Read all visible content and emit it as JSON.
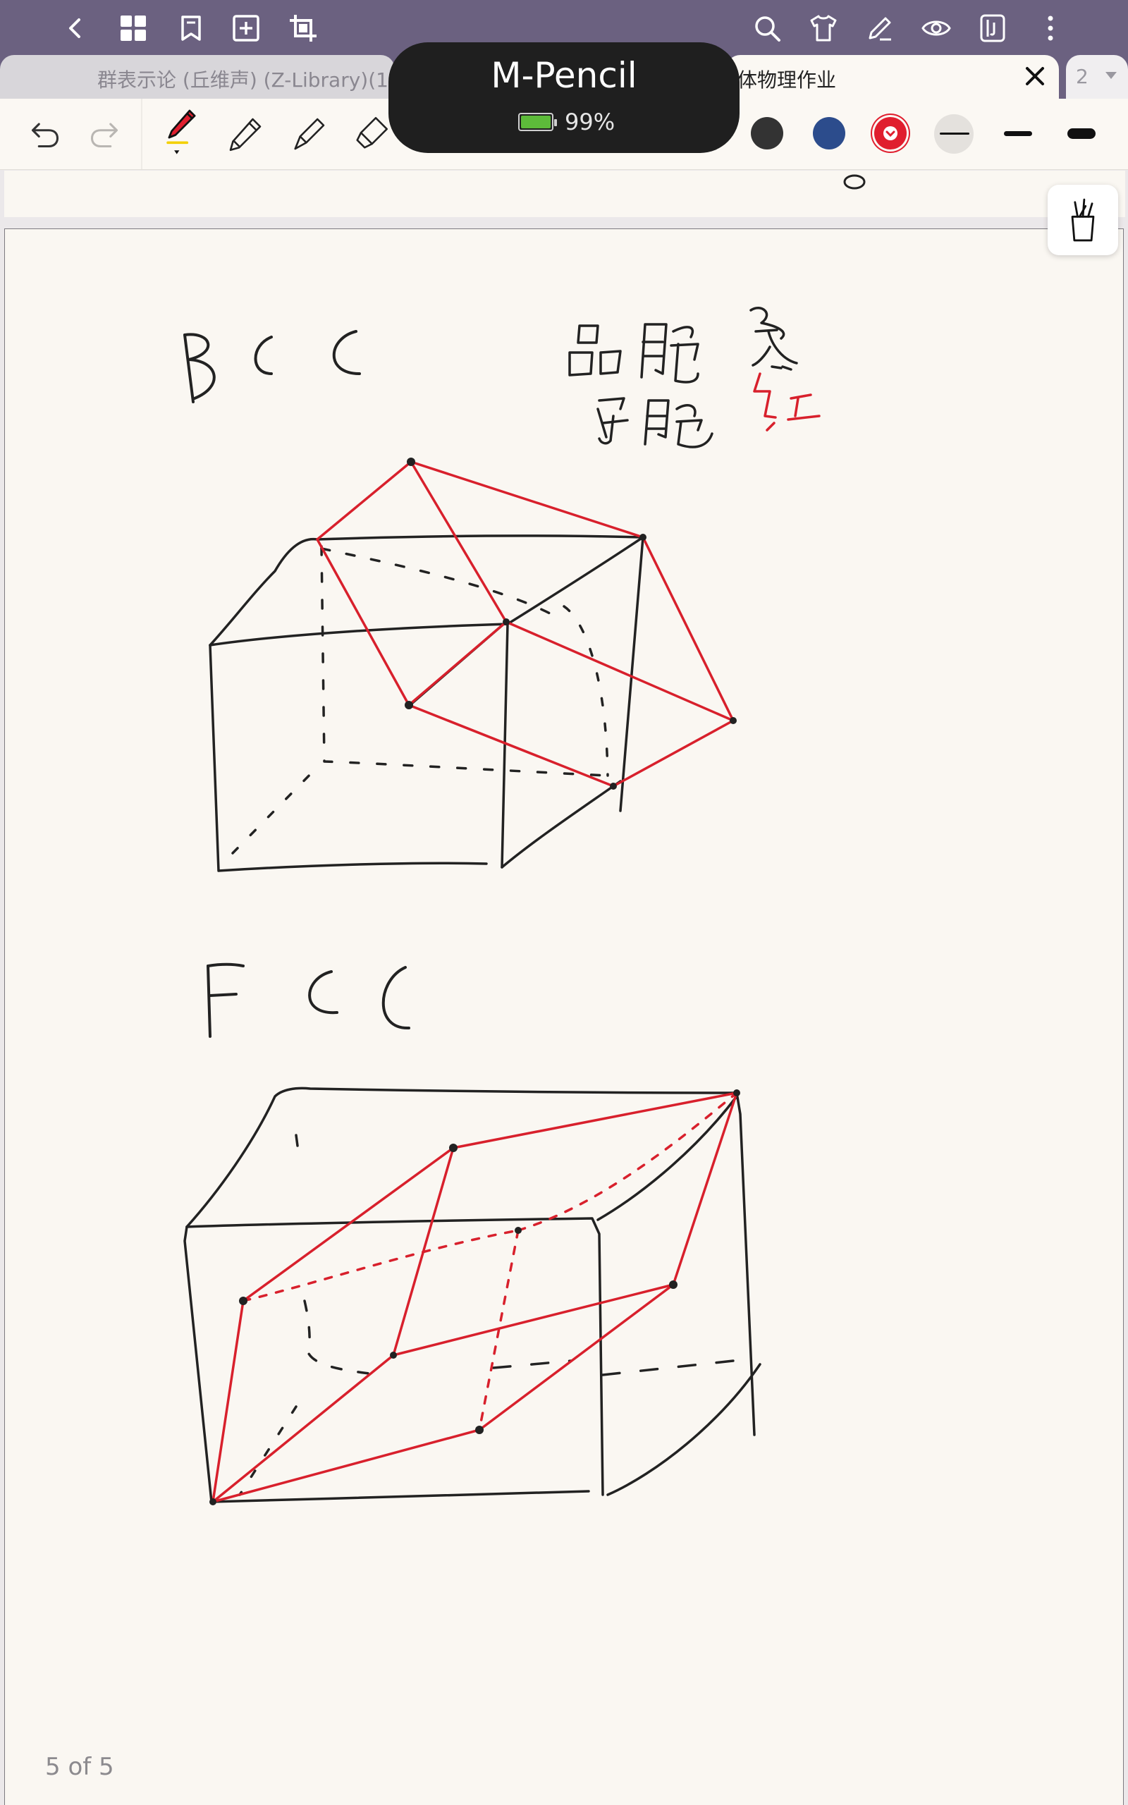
{
  "topbar": {
    "icons": [
      "back-icon",
      "grid-icon",
      "bookmark-icon",
      "add-page-icon",
      "crop-icon",
      "search-icon",
      "shirt-icon",
      "pen-edit-icon",
      "eye-icon",
      "notebook-icon",
      "more-icon"
    ]
  },
  "tabs": [
    {
      "label": "群表示论 (丘维声) (Z-Library)(1",
      "active": false
    },
    {
      "label": "体物理作业",
      "active": true
    },
    {
      "label": "2",
      "active": false
    }
  ],
  "toolbar": {
    "tools": [
      "undo-icon",
      "redo-icon",
      "pen-tool",
      "pencil-tool",
      "fountain-pen-tool",
      "highlighter-tool"
    ],
    "colors": [
      "#333333",
      "#2c4c8c",
      "#e01e2e"
    ],
    "selected_color": "#e01e2e",
    "stroke_widths": [
      "thin",
      "medium",
      "thick"
    ]
  },
  "hud": {
    "device_name": "M-Pencil",
    "battery": "99%"
  },
  "note": {
    "page_indicator": "5 of 5"
  }
}
